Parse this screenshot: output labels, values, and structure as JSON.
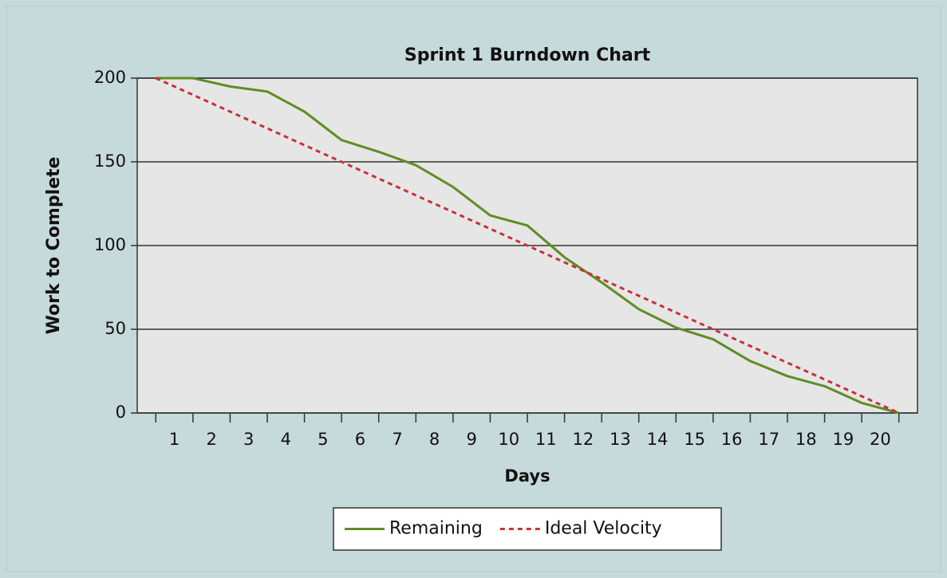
{
  "chart_data": {
    "type": "line",
    "title": "Sprint 1 Burndown Chart",
    "x_label": "Days",
    "y_label": "Work to Complete",
    "x": [
      0,
      1,
      2,
      3,
      4,
      5,
      6,
      7,
      8,
      9,
      10,
      11,
      12,
      13,
      14,
      15,
      16,
      17,
      18,
      19,
      20
    ],
    "series": [
      {
        "name": "Remaining",
        "color": "#5f8d23",
        "style": "solid",
        "values": [
          200,
          200,
          195,
          192,
          180,
          163,
          156,
          148,
          135,
          118,
          112,
          93,
          78,
          62,
          51,
          44,
          31,
          22,
          16,
          6,
          0
        ]
      },
      {
        "name": "Ideal Velocity",
        "color": "#c8323c",
        "style": "dotted",
        "values": [
          200,
          190,
          180,
          170,
          160,
          150,
          140,
          130,
          120,
          110,
          100,
          90,
          80,
          70,
          60,
          50,
          40,
          30,
          20,
          10,
          0
        ]
      }
    ],
    "xlim": [
      -0.5,
      20.5
    ],
    "xticks": [
      {
        "value": 0.5,
        "label": "1"
      },
      {
        "value": 1.5,
        "label": "2"
      },
      {
        "value": 2.5,
        "label": "3"
      },
      {
        "value": 3.5,
        "label": "4"
      },
      {
        "value": 4.5,
        "label": "5"
      },
      {
        "value": 5.5,
        "label": "6"
      },
      {
        "value": 6.5,
        "label": "7"
      },
      {
        "value": 7.5,
        "label": "8"
      },
      {
        "value": 8.5,
        "label": "9"
      },
      {
        "value": 9.5,
        "label": "10"
      },
      {
        "value": 10.5,
        "label": "11"
      },
      {
        "value": 11.5,
        "label": "12"
      },
      {
        "value": 12.5,
        "label": "13"
      },
      {
        "value": 13.5,
        "label": "14"
      },
      {
        "value": 14.5,
        "label": "15"
      },
      {
        "value": 15.5,
        "label": "16"
      },
      {
        "value": 16.5,
        "label": "17"
      },
      {
        "value": 17.5,
        "label": "18"
      },
      {
        "value": 18.5,
        "label": "19"
      },
      {
        "value": 19.5,
        "label": "20"
      }
    ],
    "ylim": [
      0,
      200
    ],
    "yticks": [
      0,
      50,
      100,
      150,
      200
    ],
    "grid": true,
    "legend": "bottom"
  }
}
